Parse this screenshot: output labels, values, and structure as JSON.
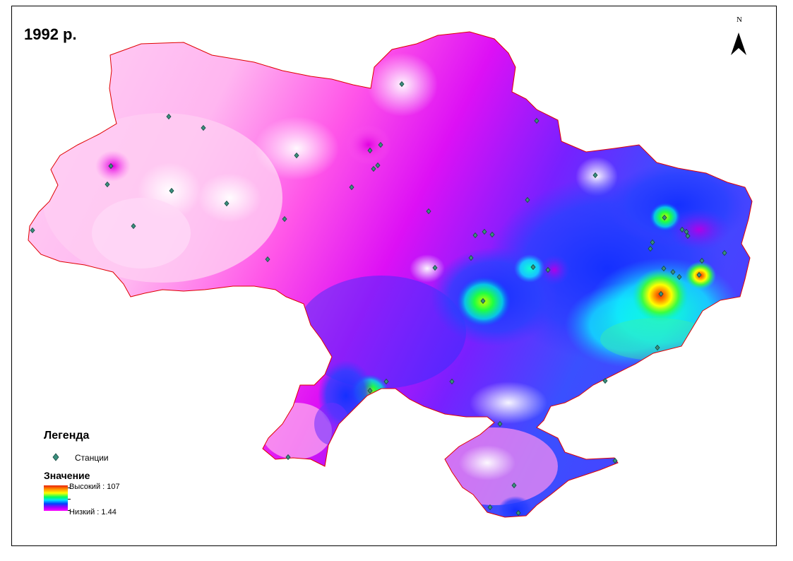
{
  "map": {
    "year_label": "1992 р.",
    "north_label": "N"
  },
  "legend": {
    "title": "Легенда",
    "stations_label": "Станции",
    "value_title": "Значение",
    "high_label": "Высокий : 107",
    "low_label": "Низкий : 1.44"
  },
  "colors": {
    "outline": "#e00000",
    "station_fill": "#3a8f7e",
    "ramp": [
      "#e82000",
      "#ff8c00",
      "#ffff00",
      "#00ff60",
      "#00e0ff",
      "#0040ff",
      "#a000ff",
      "#ff00ff"
    ]
  }
}
